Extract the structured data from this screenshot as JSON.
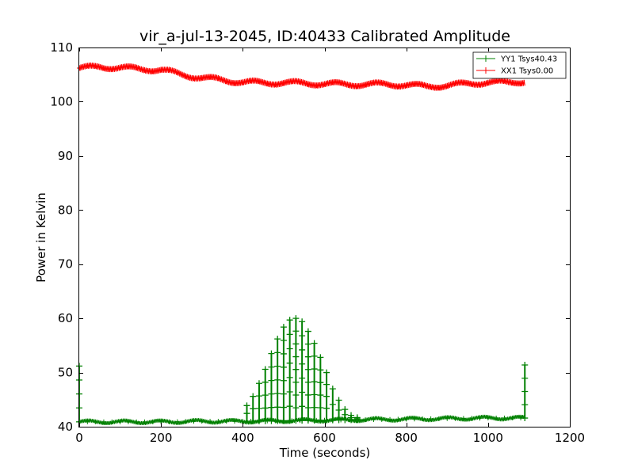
{
  "chart_data": {
    "type": "line",
    "title": "vir_a-jul-13-2045, ID:40433 Calibrated Amplitude",
    "xlabel": "Time (seconds)",
    "ylabel": "Power in Kelvin",
    "xlim": [
      0,
      1200
    ],
    "ylim": [
      40,
      110
    ],
    "xticks": [
      0,
      200,
      400,
      600,
      800,
      1000,
      1200
    ],
    "yticks": [
      40,
      50,
      60,
      70,
      80,
      90,
      100,
      110
    ],
    "grid": false,
    "legend_position": "top-right",
    "series": [
      {
        "name": "YY1 Tsys40.43",
        "color": "#008000",
        "marker": "+",
        "baseline": {
          "x": [
            0,
            100,
            200,
            300,
            400,
            500,
            600,
            700,
            800,
            900,
            1000,
            1090
          ],
          "y": [
            40.9,
            40.9,
            40.9,
            41.0,
            41.0,
            41.1,
            41.2,
            41.3,
            41.4,
            41.5,
            41.6,
            41.6
          ]
        },
        "spikes": {
          "x": [
            0,
            410,
            425,
            440,
            455,
            470,
            485,
            500,
            515,
            530,
            545,
            560,
            575,
            590,
            605,
            620,
            635,
            650,
            665,
            680,
            1090
          ],
          "y": [
            51.2,
            43.9,
            45.6,
            48.0,
            50.6,
            53.5,
            56.2,
            58.4,
            59.7,
            60.0,
            59.4,
            57.6,
            55.4,
            52.8,
            50.0,
            47.0,
            44.9,
            43.2,
            42.1,
            41.7,
            51.4
          ]
        }
      },
      {
        "name": "XX1 Tsys0.00",
        "color": "#ff0000",
        "marker": "+",
        "x": [
          0,
          50,
          100,
          150,
          200,
          250,
          300,
          350,
          400,
          450,
          500,
          550,
          600,
          650,
          700,
          750,
          800,
          850,
          900,
          950,
          1000,
          1050,
          1090
        ],
        "y": [
          106.2,
          106.4,
          106.3,
          106.0,
          105.9,
          105.0,
          104.4,
          104.0,
          103.6,
          103.5,
          103.5,
          103.4,
          103.3,
          103.2,
          103.2,
          103.2,
          103.1,
          102.8,
          103.0,
          103.3,
          103.6,
          103.5,
          103.8
        ]
      }
    ]
  }
}
